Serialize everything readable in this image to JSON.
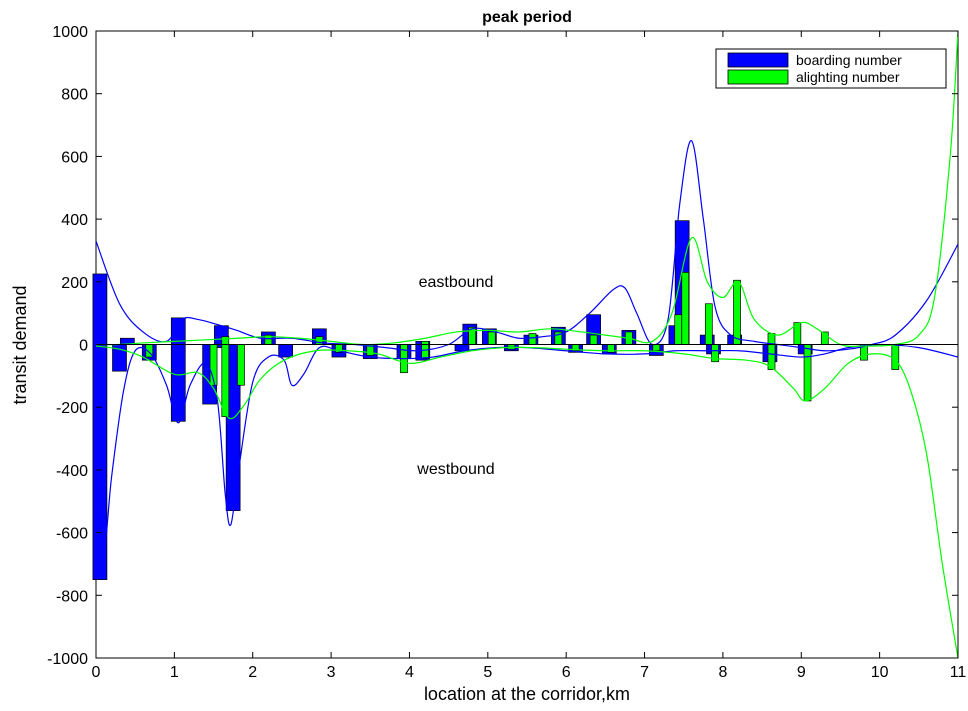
{
  "chart_data": {
    "type": "bar",
    "title": "peak period",
    "xlabel": "location at the corridor,km",
    "ylabel": "transit demand",
    "xlim": [
      0,
      11
    ],
    "ylim": [
      -1000,
      1000
    ],
    "x_ticks": [
      "0",
      "1",
      "2",
      "3",
      "4",
      "5",
      "6",
      "7",
      "8",
      "9",
      "10",
      "11"
    ],
    "y_ticks": [
      "1000",
      "800",
      "600",
      "400",
      "200",
      "0",
      "-200",
      "-400",
      "-600",
      "-800",
      "-1000"
    ],
    "grid": false,
    "legend_position": "top-right",
    "annotations": [
      {
        "text": "eastbound",
        "x": 4.7,
        "y": 195
      },
      {
        "text": "westbound",
        "x": 4.7,
        "y": -405
      }
    ],
    "series": [
      {
        "name": "boarding number",
        "color": "#0000ff",
        "bars": [
          {
            "x": 0.05,
            "top": 225,
            "bottom": -750
          },
          {
            "x": 0.3,
            "top": 0,
            "bottom": -85
          },
          {
            "x": 0.4,
            "top": 20,
            "bottom": 0
          },
          {
            "x": 0.68,
            "top": 0,
            "bottom": -50
          },
          {
            "x": 1.05,
            "top": 85,
            "bottom": -245
          },
          {
            "x": 1.45,
            "top": 0,
            "bottom": -190
          },
          {
            "x": 1.6,
            "top": 60,
            "bottom": -10
          },
          {
            "x": 1.75,
            "top": 0,
            "bottom": -530
          },
          {
            "x": 2.2,
            "top": 40,
            "bottom": 0
          },
          {
            "x": 2.42,
            "top": 0,
            "bottom": -40
          },
          {
            "x": 2.85,
            "top": 50,
            "bottom": 0
          },
          {
            "x": 3.1,
            "top": 0,
            "bottom": -40
          },
          {
            "x": 3.5,
            "top": 0,
            "bottom": -45
          },
          {
            "x": 3.93,
            "top": 0,
            "bottom": -45
          },
          {
            "x": 4.17,
            "top": 10,
            "bottom": -50
          },
          {
            "x": 4.67,
            "top": 0,
            "bottom": -20
          },
          {
            "x": 4.77,
            "top": 65,
            "bottom": 0
          },
          {
            "x": 5.02,
            "top": 50,
            "bottom": 0
          },
          {
            "x": 5.3,
            "top": 0,
            "bottom": -20
          },
          {
            "x": 5.55,
            "top": 30,
            "bottom": 0
          },
          {
            "x": 5.9,
            "top": 55,
            "bottom": 0
          },
          {
            "x": 6.12,
            "top": 0,
            "bottom": -25
          },
          {
            "x": 6.35,
            "top": 95,
            "bottom": 0
          },
          {
            "x": 6.55,
            "top": 0,
            "bottom": -30
          },
          {
            "x": 6.8,
            "top": 45,
            "bottom": 0
          },
          {
            "x": 7.15,
            "top": 0,
            "bottom": -35
          },
          {
            "x": 7.4,
            "top": 60,
            "bottom": 0
          },
          {
            "x": 7.48,
            "top": 395,
            "bottom": 0
          },
          {
            "x": 7.8,
            "top": 30,
            "bottom": 0
          },
          {
            "x": 7.88,
            "top": 0,
            "bottom": -30
          },
          {
            "x": 8.15,
            "top": 30,
            "bottom": 0
          },
          {
            "x": 8.6,
            "top": 0,
            "bottom": -55
          },
          {
            "x": 9.05,
            "top": 0,
            "bottom": -30
          }
        ]
      },
      {
        "name": "alighting number",
        "color": "#00ff00",
        "bars": [
          {
            "x": 0.68,
            "top": 0,
            "bottom": -40
          },
          {
            "x": 1.5,
            "top": 0,
            "bottom": -130
          },
          {
            "x": 1.65,
            "top": 25,
            "bottom": -230
          },
          {
            "x": 1.85,
            "top": 0,
            "bottom": -130
          },
          {
            "x": 2.2,
            "top": 30,
            "bottom": 0
          },
          {
            "x": 2.85,
            "top": 25,
            "bottom": 0
          },
          {
            "x": 3.1,
            "top": 0,
            "bottom": -25
          },
          {
            "x": 3.5,
            "top": 0,
            "bottom": -35
          },
          {
            "x": 3.93,
            "top": 0,
            "bottom": -90
          },
          {
            "x": 4.2,
            "top": 10,
            "bottom": -45
          },
          {
            "x": 4.8,
            "top": 55,
            "bottom": 0
          },
          {
            "x": 5.05,
            "top": 40,
            "bottom": 0
          },
          {
            "x": 5.3,
            "top": 0,
            "bottom": -15
          },
          {
            "x": 5.57,
            "top": 35,
            "bottom": 0
          },
          {
            "x": 5.9,
            "top": 40,
            "bottom": 0
          },
          {
            "x": 6.12,
            "top": 0,
            "bottom": -20
          },
          {
            "x": 6.35,
            "top": 30,
            "bottom": 0
          },
          {
            "x": 6.57,
            "top": 0,
            "bottom": -25
          },
          {
            "x": 6.8,
            "top": 40,
            "bottom": 0
          },
          {
            "x": 7.15,
            "top": 0,
            "bottom": -20
          },
          {
            "x": 7.43,
            "top": 95,
            "bottom": 0
          },
          {
            "x": 7.52,
            "top": 230,
            "bottom": 0
          },
          {
            "x": 7.82,
            "top": 130,
            "bottom": 0
          },
          {
            "x": 7.9,
            "top": 0,
            "bottom": -55
          },
          {
            "x": 8.18,
            "top": 205,
            "bottom": 0
          },
          {
            "x": 8.62,
            "top": 35,
            "bottom": -80
          },
          {
            "x": 8.95,
            "top": 70,
            "bottom": 0
          },
          {
            "x": 9.08,
            "top": 0,
            "bottom": -180
          },
          {
            "x": 9.3,
            "top": 40,
            "bottom": 0
          },
          {
            "x": 9.8,
            "top": 0,
            "bottom": -50
          },
          {
            "x": 10.2,
            "top": 0,
            "bottom": -80
          }
        ]
      }
    ],
    "fitted_curves": [
      {
        "color": "#0000ff",
        "points": [
          [
            0,
            330
          ],
          [
            0.3,
            130
          ],
          [
            0.6,
            40
          ],
          [
            0.9,
            10
          ],
          [
            1.1,
            80
          ],
          [
            1.3,
            80
          ],
          [
            1.6,
            60
          ],
          [
            1.8,
            45
          ],
          [
            2.1,
            20
          ],
          [
            2.5,
            20
          ],
          [
            2.9,
            5
          ],
          [
            3.3,
            0
          ],
          [
            3.7,
            -10
          ],
          [
            4.1,
            -20
          ],
          [
            4.5,
            0
          ],
          [
            4.8,
            50
          ],
          [
            5.1,
            40
          ],
          [
            5.4,
            20
          ],
          [
            5.7,
            25
          ],
          [
            6.0,
            40
          ],
          [
            6.3,
            100
          ],
          [
            6.6,
            175
          ],
          [
            6.75,
            180
          ],
          [
            6.9,
            100
          ],
          [
            7.1,
            0
          ],
          [
            7.3,
            80
          ],
          [
            7.45,
            450
          ],
          [
            7.6,
            650
          ],
          [
            7.75,
            400
          ],
          [
            7.9,
            120
          ],
          [
            8.1,
            30
          ],
          [
            8.4,
            10
          ],
          [
            8.7,
            0
          ],
          [
            9.0,
            -10
          ],
          [
            9.3,
            -20
          ],
          [
            9.6,
            -15
          ],
          [
            9.9,
            0
          ],
          [
            10.2,
            30
          ],
          [
            10.6,
            140
          ],
          [
            11,
            320
          ]
        ]
      },
      {
        "color": "#0000ff",
        "points": [
          [
            0,
            -10
          ],
          [
            0.05,
            -300
          ],
          [
            0.1,
            -650
          ],
          [
            0.2,
            -420
          ],
          [
            0.35,
            -150
          ],
          [
            0.5,
            -20
          ],
          [
            0.7,
            -30
          ],
          [
            0.9,
            -130
          ],
          [
            1.05,
            -250
          ],
          [
            1.2,
            -130
          ],
          [
            1.4,
            -60
          ],
          [
            1.55,
            -180
          ],
          [
            1.65,
            -480
          ],
          [
            1.72,
            -575
          ],
          [
            1.82,
            -400
          ],
          [
            2.0,
            -120
          ],
          [
            2.2,
            -40
          ],
          [
            2.4,
            -50
          ],
          [
            2.5,
            -130
          ],
          [
            2.65,
            -95
          ],
          [
            2.85,
            -10
          ],
          [
            3.1,
            -20
          ],
          [
            3.5,
            -40
          ],
          [
            3.9,
            -45
          ],
          [
            4.3,
            -40
          ],
          [
            4.7,
            -20
          ],
          [
            5.1,
            -10
          ],
          [
            5.5,
            -10
          ],
          [
            6.0,
            -20
          ],
          [
            6.5,
            -30
          ],
          [
            7.0,
            -30
          ],
          [
            7.4,
            -20
          ],
          [
            7.8,
            -20
          ],
          [
            8.2,
            -20
          ],
          [
            8.6,
            -30
          ],
          [
            9.0,
            -40
          ],
          [
            9.3,
            -30
          ],
          [
            9.6,
            -10
          ],
          [
            10.0,
            0
          ],
          [
            10.5,
            -10
          ],
          [
            11,
            -40
          ]
        ]
      },
      {
        "color": "#00ff00",
        "points": [
          [
            0,
            0
          ],
          [
            0.3,
            0
          ],
          [
            0.6,
            5
          ],
          [
            1.0,
            10
          ],
          [
            1.4,
            15
          ],
          [
            1.8,
            20
          ],
          [
            2.2,
            25
          ],
          [
            2.6,
            20
          ],
          [
            3.0,
            10
          ],
          [
            3.4,
            0
          ],
          [
            3.8,
            5
          ],
          [
            4.2,
            20
          ],
          [
            4.6,
            40
          ],
          [
            5.0,
            45
          ],
          [
            5.4,
            40
          ],
          [
            5.8,
            50
          ],
          [
            6.2,
            40
          ],
          [
            6.5,
            30
          ],
          [
            6.8,
            20
          ],
          [
            7.1,
            10
          ],
          [
            7.35,
            100
          ],
          [
            7.6,
            340
          ],
          [
            7.8,
            200
          ],
          [
            8.0,
            150
          ],
          [
            8.2,
            200
          ],
          [
            8.4,
            80
          ],
          [
            8.7,
            30
          ],
          [
            9.0,
            70
          ],
          [
            9.2,
            50
          ],
          [
            9.5,
            0
          ],
          [
            9.8,
            -5
          ],
          [
            10.2,
            0
          ],
          [
            10.5,
            30
          ],
          [
            10.7,
            150
          ],
          [
            10.9,
            600
          ],
          [
            11,
            1000
          ]
        ]
      },
      {
        "color": "#00ff00",
        "points": [
          [
            0,
            -5
          ],
          [
            0.3,
            -15
          ],
          [
            0.6,
            -40
          ],
          [
            1.0,
            -95
          ],
          [
            1.3,
            -90
          ],
          [
            1.5,
            -140
          ],
          [
            1.7,
            -235
          ],
          [
            1.9,
            -190
          ],
          [
            2.1,
            -110
          ],
          [
            2.4,
            -50
          ],
          [
            2.8,
            -20
          ],
          [
            3.2,
            -20
          ],
          [
            3.6,
            -30
          ],
          [
            4.0,
            -60
          ],
          [
            4.4,
            -40
          ],
          [
            4.8,
            -20
          ],
          [
            5.2,
            -10
          ],
          [
            5.6,
            -10
          ],
          [
            6.0,
            -15
          ],
          [
            6.5,
            -20
          ],
          [
            7.0,
            -20
          ],
          [
            7.5,
            -30
          ],
          [
            7.9,
            -45
          ],
          [
            8.3,
            -50
          ],
          [
            8.6,
            -70
          ],
          [
            8.9,
            -140
          ],
          [
            9.05,
            -180
          ],
          [
            9.3,
            -140
          ],
          [
            9.6,
            -60
          ],
          [
            9.9,
            -30
          ],
          [
            10.2,
            -50
          ],
          [
            10.4,
            -150
          ],
          [
            10.6,
            -350
          ],
          [
            10.8,
            -700
          ],
          [
            11,
            -1000
          ]
        ]
      }
    ]
  }
}
